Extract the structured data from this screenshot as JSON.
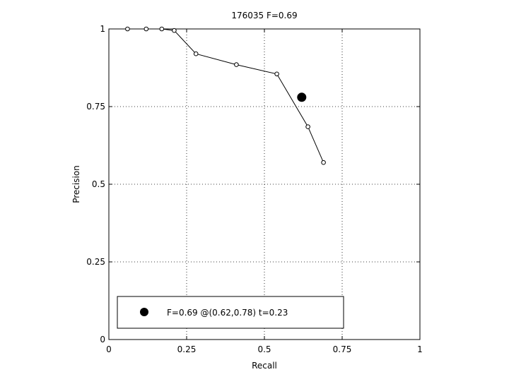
{
  "chart_data": {
    "type": "line",
    "title": "176035 F=0.69",
    "xlabel": "Recall",
    "ylabel": "Precision",
    "xlim": [
      0,
      1
    ],
    "ylim": [
      0,
      1
    ],
    "grid": true,
    "x_ticks": [
      0,
      0.25,
      0.5,
      0.75,
      1
    ],
    "x_tick_labels": [
      "0",
      "0.25",
      "0.5",
      "0.75",
      "1"
    ],
    "y_ticks": [
      0,
      0.25,
      0.5,
      0.75,
      1
    ],
    "y_tick_labels": [
      "0",
      "0.25",
      "0.5",
      "0.75",
      "1"
    ],
    "series": [
      {
        "x": [
          0.06,
          0.12,
          0.17,
          0.21,
          0.28,
          0.41,
          0.54,
          0.64,
          0.69
        ],
        "y": [
          1.0,
          1.0,
          1.0,
          0.995,
          0.92,
          0.885,
          0.855,
          0.685,
          0.57
        ]
      }
    ],
    "highlight_point": {
      "x": 0.62,
      "y": 0.78
    },
    "legend": {
      "placement": "bottom-left",
      "entries": [
        "F=0.69 @(0.62,0.78) t=0.23"
      ]
    }
  }
}
